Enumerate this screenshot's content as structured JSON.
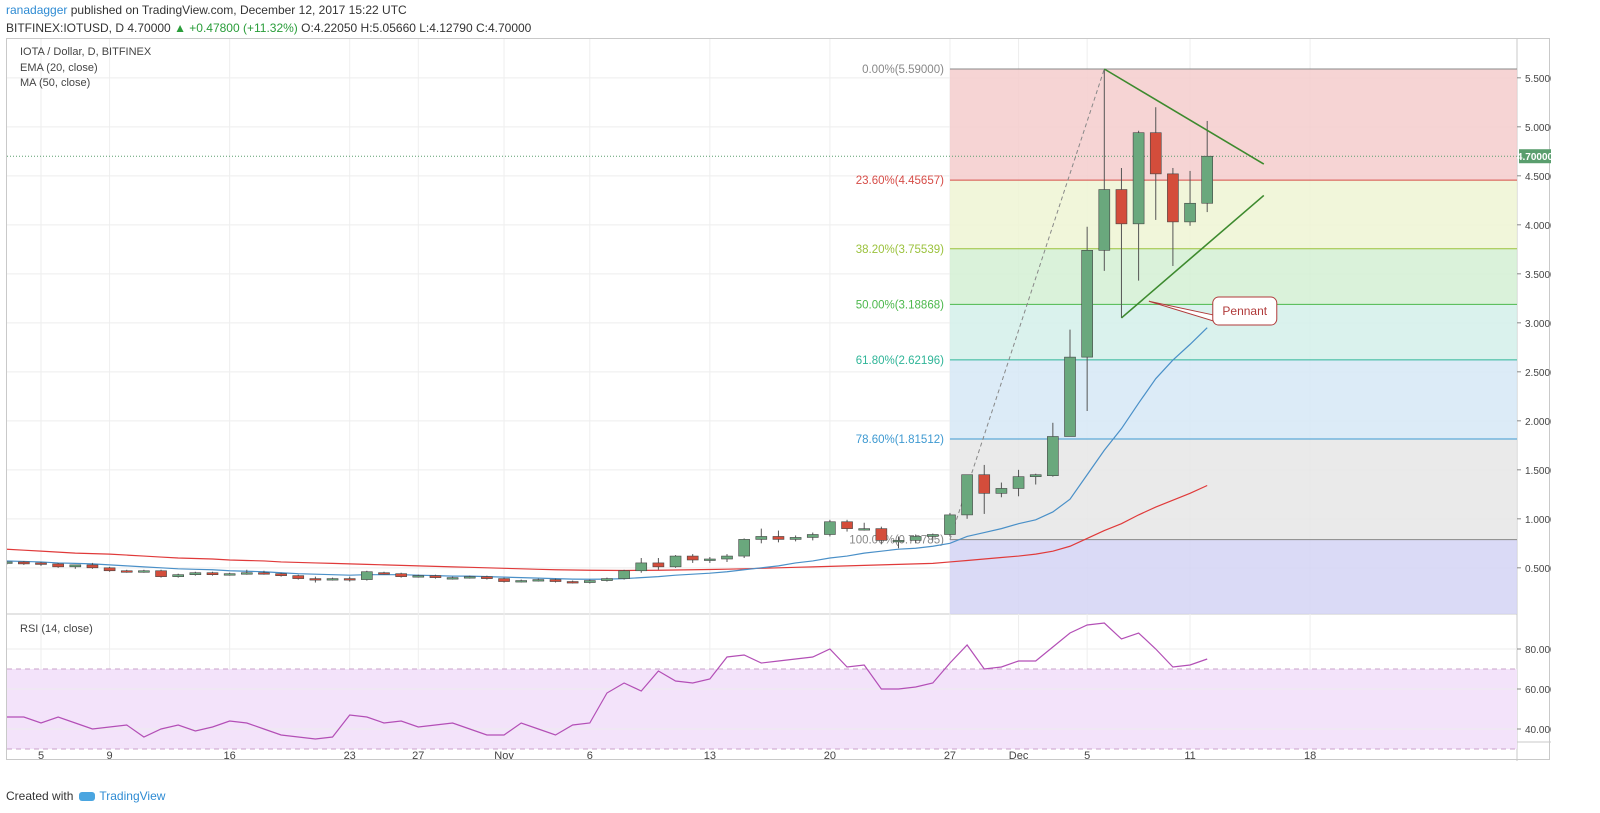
{
  "header": {
    "author": "ranadagger",
    "published": "published on TradingView.com, December 12, 2017 15:22 UTC",
    "ticker_line": "BITFINEX:IOTUSD, D 4.70000",
    "change": "▲ +0.47800 (+11.32%)",
    "ohlc": "O:4.22050 H:5.05660 L:4.12790 C:4.70000"
  },
  "legend": {
    "symbol": "IOTA / Dollar, D, BITFINEX",
    "ema": "EMA (20, close)",
    "ma": "MA (50, close)",
    "rsi": "RSI (14, close)"
  },
  "footer": {
    "created": "Created with",
    "brand": "TradingView"
  },
  "colors": {
    "up": "#6aa87d",
    "down": "#d44d3b",
    "ema": "#4a90c8",
    "ma": "#e03a3a",
    "rsi": "#b34fb6",
    "trendline": "#3d8a2e",
    "price_badge": "#5a9e6e"
  },
  "chart_data": {
    "type": "candlestick",
    "title": "IOTA / Dollar, D, BITFINEX",
    "y_ticks": [
      0.5,
      1.0,
      1.5,
      2.0,
      2.5,
      3.0,
      3.5,
      4.0,
      4.5,
      5.0,
      5.5
    ],
    "y_tick_labels": [
      "0.50000",
      "1.00000",
      "1.50000",
      "2.00000",
      "2.50000",
      "3.00000",
      "3.50000",
      "4.00000",
      "4.50000",
      "5.00000",
      "5.50000"
    ],
    "ylim": [
      0.0,
      5.9
    ],
    "last_price": "4.70000",
    "last_price_value": 4.7,
    "x_ticks": [
      {
        "label": "5",
        "i": 2
      },
      {
        "label": "9",
        "i": 6
      },
      {
        "label": "16",
        "i": 13
      },
      {
        "label": "23",
        "i": 20
      },
      {
        "label": "27",
        "i": 24
      },
      {
        "label": "Nov",
        "i": 29
      },
      {
        "label": "6",
        "i": 34
      },
      {
        "label": "13",
        "i": 41
      },
      {
        "label": "20",
        "i": 48
      },
      {
        "label": "27",
        "i": 55
      },
      {
        "label": "Dec",
        "i": 59
      },
      {
        "label": "5",
        "i": 63
      },
      {
        "label": "11",
        "i": 69
      },
      {
        "label": "18",
        "i": 76
      }
    ],
    "candles": [
      [
        0.55,
        0.57,
        0.53,
        0.56
      ],
      [
        0.56,
        0.57,
        0.53,
        0.54
      ],
      [
        0.55,
        0.56,
        0.52,
        0.54
      ],
      [
        0.54,
        0.55,
        0.5,
        0.51
      ],
      [
        0.51,
        0.53,
        0.49,
        0.53
      ],
      [
        0.53,
        0.55,
        0.49,
        0.5
      ],
      [
        0.5,
        0.51,
        0.46,
        0.47
      ],
      [
        0.47,
        0.48,
        0.45,
        0.46
      ],
      [
        0.46,
        0.48,
        0.45,
        0.47
      ],
      [
        0.47,
        0.48,
        0.4,
        0.41
      ],
      [
        0.41,
        0.44,
        0.4,
        0.43
      ],
      [
        0.43,
        0.46,
        0.42,
        0.45
      ],
      [
        0.45,
        0.46,
        0.42,
        0.43
      ],
      [
        0.43,
        0.45,
        0.42,
        0.44
      ],
      [
        0.44,
        0.48,
        0.43,
        0.45
      ],
      [
        0.45,
        0.47,
        0.43,
        0.44
      ],
      [
        0.44,
        0.45,
        0.41,
        0.42
      ],
      [
        0.42,
        0.43,
        0.38,
        0.39
      ],
      [
        0.39,
        0.41,
        0.35,
        0.38
      ],
      [
        0.38,
        0.4,
        0.37,
        0.39
      ],
      [
        0.39,
        0.41,
        0.36,
        0.38
      ],
      [
        0.38,
        0.47,
        0.37,
        0.46
      ],
      [
        0.45,
        0.46,
        0.43,
        0.44
      ],
      [
        0.44,
        0.45,
        0.4,
        0.41
      ],
      [
        0.41,
        0.43,
        0.4,
        0.42
      ],
      [
        0.42,
        0.43,
        0.39,
        0.4
      ],
      [
        0.4,
        0.41,
        0.38,
        0.4
      ],
      [
        0.4,
        0.42,
        0.39,
        0.41
      ],
      [
        0.41,
        0.42,
        0.38,
        0.39
      ],
      [
        0.39,
        0.4,
        0.35,
        0.36
      ],
      [
        0.36,
        0.38,
        0.35,
        0.37
      ],
      [
        0.37,
        0.39,
        0.36,
        0.38
      ],
      [
        0.38,
        0.39,
        0.35,
        0.36
      ],
      [
        0.36,
        0.37,
        0.34,
        0.35
      ],
      [
        0.35,
        0.38,
        0.34,
        0.37
      ],
      [
        0.37,
        0.4,
        0.36,
        0.39
      ],
      [
        0.39,
        0.48,
        0.38,
        0.47
      ],
      [
        0.47,
        0.6,
        0.45,
        0.55
      ],
      [
        0.55,
        0.6,
        0.48,
        0.51
      ],
      [
        0.51,
        0.63,
        0.5,
        0.62
      ],
      [
        0.62,
        0.64,
        0.55,
        0.58
      ],
      [
        0.58,
        0.61,
        0.55,
        0.59
      ],
      [
        0.59,
        0.64,
        0.56,
        0.62
      ],
      [
        0.62,
        0.8,
        0.6,
        0.79
      ],
      [
        0.79,
        0.9,
        0.75,
        0.82
      ],
      [
        0.82,
        0.88,
        0.76,
        0.79
      ],
      [
        0.79,
        0.83,
        0.77,
        0.81
      ],
      [
        0.81,
        0.86,
        0.78,
        0.84
      ],
      [
        0.84,
        0.99,
        0.82,
        0.97
      ],
      [
        0.97,
        0.99,
        0.87,
        0.9
      ],
      [
        0.9,
        0.96,
        0.88,
        0.9
      ],
      [
        0.9,
        0.92,
        0.74,
        0.78
      ],
      [
        0.78,
        0.82,
        0.7,
        0.78
      ],
      [
        0.78,
        0.84,
        0.75,
        0.82
      ],
      [
        0.82,
        0.85,
        0.78,
        0.84
      ],
      [
        0.84,
        1.06,
        0.82,
        1.04
      ],
      [
        1.04,
        1.45,
        1.0,
        1.45
      ],
      [
        1.45,
        1.55,
        1.05,
        1.26
      ],
      [
        1.26,
        1.37,
        1.22,
        1.31
      ],
      [
        1.31,
        1.5,
        1.23,
        1.43
      ],
      [
        1.43,
        1.46,
        1.35,
        1.45
      ],
      [
        1.44,
        1.98,
        1.43,
        1.84
      ],
      [
        1.84,
        2.93,
        1.85,
        2.65
      ],
      [
        2.65,
        3.98,
        2.1,
        3.74
      ],
      [
        3.74,
        5.59,
        3.53,
        4.36
      ],
      [
        4.36,
        4.58,
        3.05,
        4.01
      ],
      [
        4.01,
        4.96,
        3.43,
        4.94
      ],
      [
        4.94,
        5.2,
        4.05,
        4.52
      ],
      [
        4.52,
        4.58,
        3.58,
        4.03
      ],
      [
        4.03,
        4.55,
        3.99,
        4.22
      ],
      [
        4.22,
        5.06,
        4.13,
        4.7
      ]
    ],
    "ema20": [
      0.57,
      0.565,
      0.56,
      0.55,
      0.545,
      0.54,
      0.53,
      0.52,
      0.51,
      0.5,
      0.49,
      0.485,
      0.48,
      0.47,
      0.465,
      0.46,
      0.45,
      0.44,
      0.435,
      0.43,
      0.425,
      0.43,
      0.43,
      0.43,
      0.425,
      0.42,
      0.415,
      0.415,
      0.41,
      0.405,
      0.4,
      0.395,
      0.39,
      0.385,
      0.383,
      0.385,
      0.39,
      0.4,
      0.41,
      0.425,
      0.435,
      0.445,
      0.46,
      0.48,
      0.5,
      0.52,
      0.55,
      0.57,
      0.6,
      0.62,
      0.65,
      0.67,
      0.69,
      0.7,
      0.72,
      0.75,
      0.82,
      0.86,
      0.9,
      0.95,
      0.99,
      1.07,
      1.2,
      1.45,
      1.7,
      1.92,
      2.18,
      2.43,
      2.62,
      2.78,
      2.95
    ],
    "ma50": [
      0.69,
      0.68,
      0.67,
      0.66,
      0.65,
      0.645,
      0.64,
      0.63,
      0.62,
      0.61,
      0.6,
      0.595,
      0.59,
      0.58,
      0.575,
      0.57,
      0.56,
      0.555,
      0.55,
      0.545,
      0.54,
      0.535,
      0.53,
      0.525,
      0.52,
      0.515,
      0.51,
      0.505,
      0.5,
      0.495,
      0.49,
      0.485,
      0.48,
      0.478,
      0.475,
      0.474,
      0.473,
      0.474,
      0.475,
      0.478,
      0.48,
      0.483,
      0.486,
      0.49,
      0.495,
      0.5,
      0.505,
      0.51,
      0.515,
      0.52,
      0.525,
      0.53,
      0.535,
      0.54,
      0.545,
      0.56,
      0.575,
      0.59,
      0.605,
      0.62,
      0.64,
      0.67,
      0.72,
      0.8,
      0.88,
      0.95,
      1.04,
      1.12,
      1.19,
      1.26,
      1.34
    ],
    "fib": [
      {
        "label": "0.00%(5.59000)",
        "value": 5.59,
        "color": "#888888",
        "fill": "#f4cccc"
      },
      {
        "label": "23.60%(4.45657)",
        "value": 4.45657,
        "color": "#d64c47",
        "fill": "#eef5d4"
      },
      {
        "label": "38.20%(3.75539)",
        "value": 3.75539,
        "color": "#9bc23c",
        "fill": "#d4f0d4"
      },
      {
        "label": "50.00%(3.18868)",
        "value": 3.18868,
        "color": "#4cb84c",
        "fill": "#d4f0ea"
      },
      {
        "label": "61.80%(2.62196)",
        "value": 2.62196,
        "color": "#2fb598",
        "fill": "#d6e8f6"
      },
      {
        "label": "78.60%(1.81512)",
        "value": 1.81512,
        "color": "#3d99d1",
        "fill": "#e6e6e6"
      },
      {
        "label": "100.00%(0.78785)",
        "value": 0.78785,
        "color": "#888888",
        "fill": "#d4d4f4"
      }
    ],
    "fib_start_i": 55,
    "fib_ext_low": 0.0,
    "pennant_label": "Pennant",
    "rsi": {
      "y_ticks": [
        40,
        60,
        80
      ],
      "y_tick_labels": [
        "40.0000",
        "60.0000",
        "80.0000"
      ],
      "overbought": 70,
      "oversold": 30,
      "values": [
        46,
        46,
        43,
        46,
        43,
        40,
        41,
        42,
        36,
        40,
        42,
        39,
        41,
        44,
        43,
        40,
        37,
        36,
        35,
        36,
        47,
        46,
        43,
        44,
        41,
        42,
        43,
        40,
        37,
        37,
        43,
        40,
        37,
        42,
        43,
        58,
        63,
        59,
        69,
        64,
        63,
        65,
        76,
        77,
        73,
        74,
        75,
        76,
        80,
        71,
        72,
        60,
        60,
        61,
        63,
        73,
        82,
        70,
        71,
        74,
        74,
        81,
        88,
        92,
        93,
        85,
        88,
        80,
        71,
        72,
        75
      ]
    }
  }
}
